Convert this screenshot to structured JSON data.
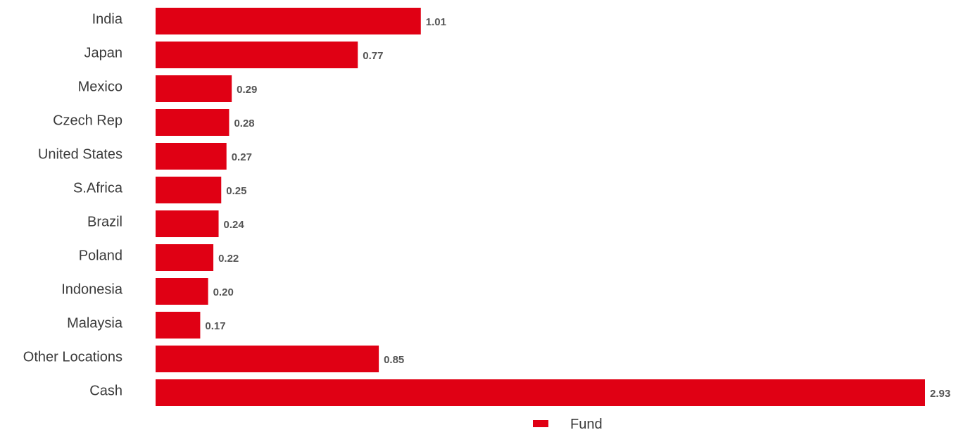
{
  "chart_data": {
    "type": "bar",
    "orientation": "horizontal",
    "categories": [
      "India",
      "Japan",
      "Mexico",
      "Czech Rep",
      "United States",
      "S.Africa",
      "Brazil",
      "Poland",
      "Indonesia",
      "Malaysia",
      "Other Locations",
      "Cash"
    ],
    "series": [
      {
        "name": "Fund",
        "values": [
          1.01,
          0.77,
          0.29,
          0.28,
          0.27,
          0.25,
          0.24,
          0.22,
          0.2,
          0.17,
          0.85,
          2.93
        ],
        "labels": [
          "1.01",
          "0.77",
          "0.29",
          "0.28",
          "0.27",
          "0.25",
          "0.24",
          "0.22",
          "0.20",
          "0.17",
          "0.85",
          "2.93"
        ],
        "color": "#e00014"
      }
    ],
    "xlim": [
      0,
      2.93
    ],
    "grid": false,
    "legend": "bottom-center",
    "title": "",
    "xlabel": "",
    "ylabel": ""
  }
}
